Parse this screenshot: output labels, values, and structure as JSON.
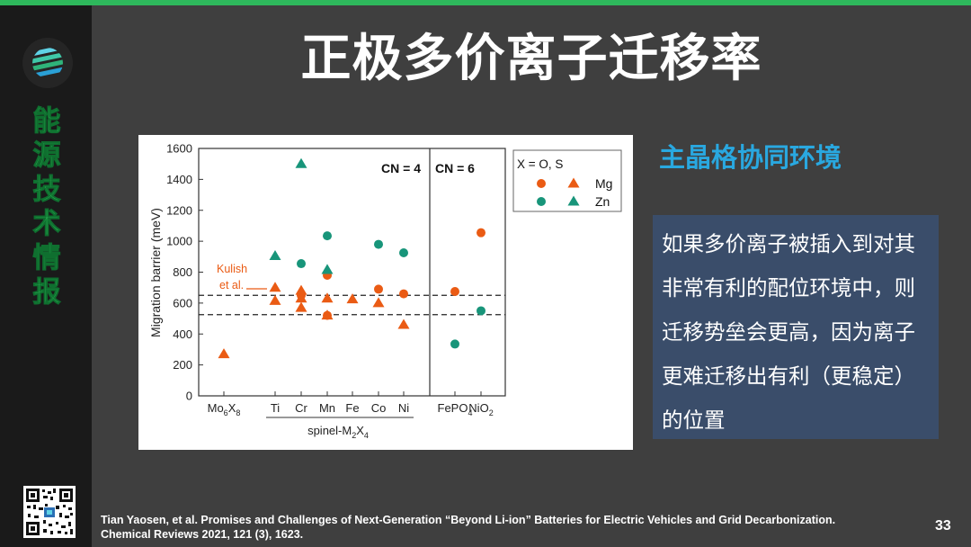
{
  "slide": {
    "title": "正极多价离子迁移率",
    "sidebar_chars": [
      "能",
      "源",
      "技",
      "术",
      "情",
      "报"
    ],
    "subheading": "主晶格协同环境",
    "body_text": "如果多价离子被插入到对其非常有利的配位环境中，则迁移势垒会更高，因为离子更难迁移出有利（更稳定）的位置",
    "citation_line1": "Tian Yaosen, et al. Promises and Challenges of Next-Generation “Beyond Li-ion” Batteries for Electric Vehicles and Grid Decarbonization.",
    "citation_line2": "Chemical Reviews 2021, 121 (3), 1623.",
    "page_number": "33"
  },
  "colors": {
    "accent_green": "#2fc25b",
    "subheading_blue": "#29a8e0",
    "textbox_bg": "#3a4d6a",
    "slide_bg": "#3f3f3f",
    "mg_orange": "#ea5b14",
    "zn_teal": "#18957a"
  },
  "icons": {
    "logo": "striped-globe-logo-icon",
    "qr": "qr-code-icon"
  },
  "chart_data": {
    "type": "scatter",
    "ylabel": "Migration barrier (meV)",
    "ylim": [
      0,
      1600
    ],
    "yticks": [
      0,
      200,
      400,
      600,
      800,
      1000,
      1200,
      1400,
      1600
    ],
    "categories": [
      "Mo6X8",
      "Ti",
      "Cr",
      "Mn",
      "Fe",
      "Co",
      "Ni",
      "FePO4",
      "NiO2"
    ],
    "category_labels": [
      {
        "base": "Mo",
        "sub1": "6",
        "mid": "X",
        "sub2": "8"
      },
      {
        "base": "Ti"
      },
      {
        "base": "Cr"
      },
      {
        "base": "Mn"
      },
      {
        "base": "Fe"
      },
      {
        "base": "Co"
      },
      {
        "base": "Ni"
      },
      {
        "base": "FePO",
        "sub1": "4"
      },
      {
        "base": "NiO",
        "sub1": "2"
      }
    ],
    "group_label": {
      "base": "spinel-M",
      "sub1": "2",
      "mid": "X",
      "sub2": "4"
    },
    "region_labels": [
      "CN = 4",
      "CN = 6"
    ],
    "reference_lines": [
      650,
      525
    ],
    "annotation_line1": "Kulish",
    "annotation_line2": "et al.",
    "legend": {
      "header": "X = O,   S",
      "rows": [
        "Mg",
        "Zn"
      ]
    },
    "series": [
      {
        "name": "Mg",
        "anion": "O",
        "marker": "circle",
        "color": "#ea5b14",
        "points": [
          [
            "Cr",
            650
          ],
          [
            "Mn",
            780
          ],
          [
            "Mn",
            520
          ],
          [
            "Co",
            690
          ],
          [
            "Ni",
            660
          ],
          [
            "FePO4",
            675
          ],
          [
            "NiO2",
            1055
          ]
        ]
      },
      {
        "name": "Mg",
        "anion": "S",
        "marker": "triangle",
        "color": "#ea5b14",
        "points": [
          [
            "Mo6X8",
            270
          ],
          [
            "Ti",
            700
          ],
          [
            "Ti",
            615
          ],
          [
            "Cr",
            680
          ],
          [
            "Cr",
            630
          ],
          [
            "Cr",
            570
          ],
          [
            "Mn",
            630
          ],
          [
            "Mn",
            520
          ],
          [
            "Fe",
            625
          ],
          [
            "Co",
            600
          ],
          [
            "Ni",
            460
          ]
        ]
      },
      {
        "name": "Zn",
        "anion": "O",
        "marker": "circle",
        "color": "#18957a",
        "points": [
          [
            "Cr",
            855
          ],
          [
            "Mn",
            1035
          ],
          [
            "Co",
            980
          ],
          [
            "Ni",
            925
          ],
          [
            "FePO4",
            335
          ],
          [
            "NiO2",
            550
          ]
        ]
      },
      {
        "name": "Zn",
        "anion": "S",
        "marker": "triangle",
        "color": "#18957a",
        "points": [
          [
            "Ti",
            905
          ],
          [
            "Cr",
            1500
          ],
          [
            "Mn",
            815
          ]
        ]
      }
    ]
  }
}
